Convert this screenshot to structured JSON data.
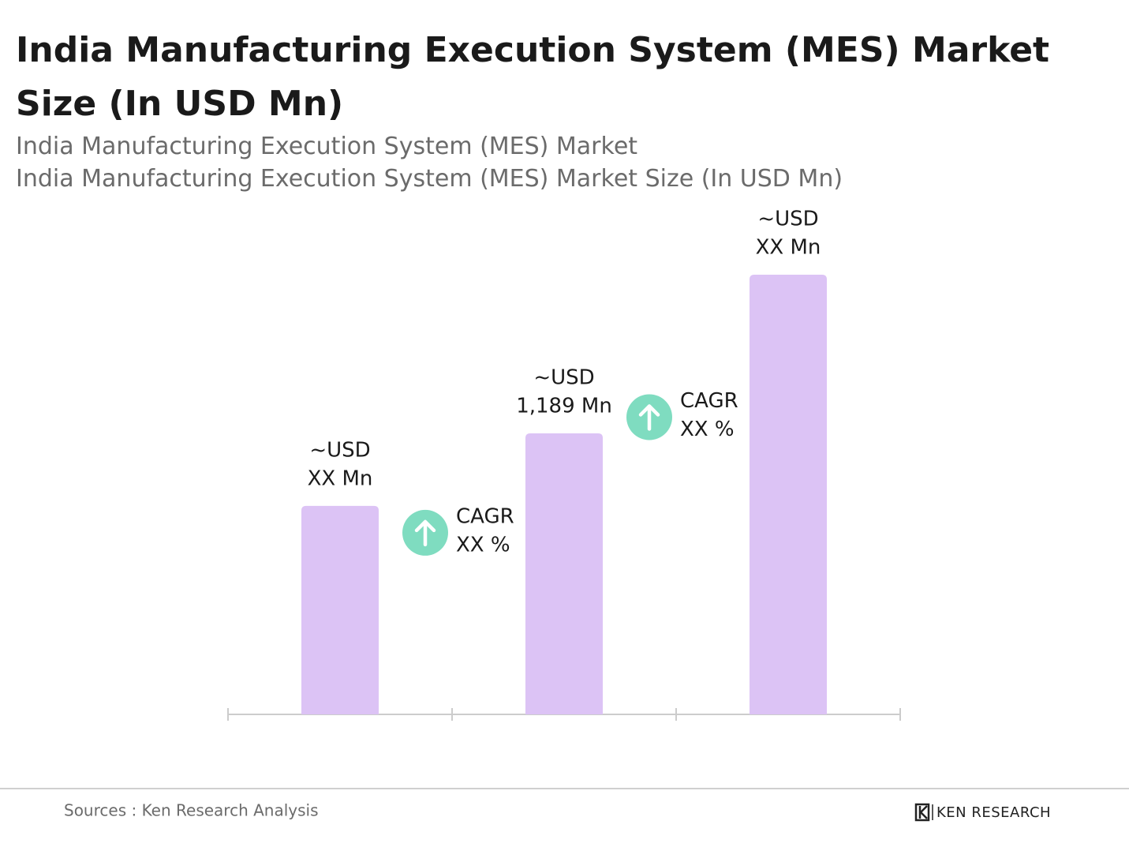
{
  "chart_data": {
    "type": "bar",
    "title": "India Manufacturing Execution System (MES) Market Size (In USD Mn)",
    "subtitle": [
      "India Manufacturing Execution System (MES) Market",
      "India Manufacturing Execution System (MES) Market Size (In USD Mn)"
    ],
    "categories": [
      null,
      null,
      null
    ],
    "values": [
      882,
      1189,
      1860
    ],
    "value_labels": [
      [
        "~USD",
        "XX Mn"
      ],
      [
        "~USD",
        "1,189 Mn"
      ],
      [
        "~USD",
        "XX Mn"
      ]
    ],
    "color": "#dcc3f5",
    "annotations": [
      {
        "title": "CAGR",
        "text": "XX %"
      },
      {
        "title": "CAGR",
        "text": "XX %"
      }
    ],
    "annotation_color": "#7fdcc0"
  },
  "footer": {
    "source": "Sources : Ken Research Analysis",
    "logo": "KEN RESEARCH"
  }
}
